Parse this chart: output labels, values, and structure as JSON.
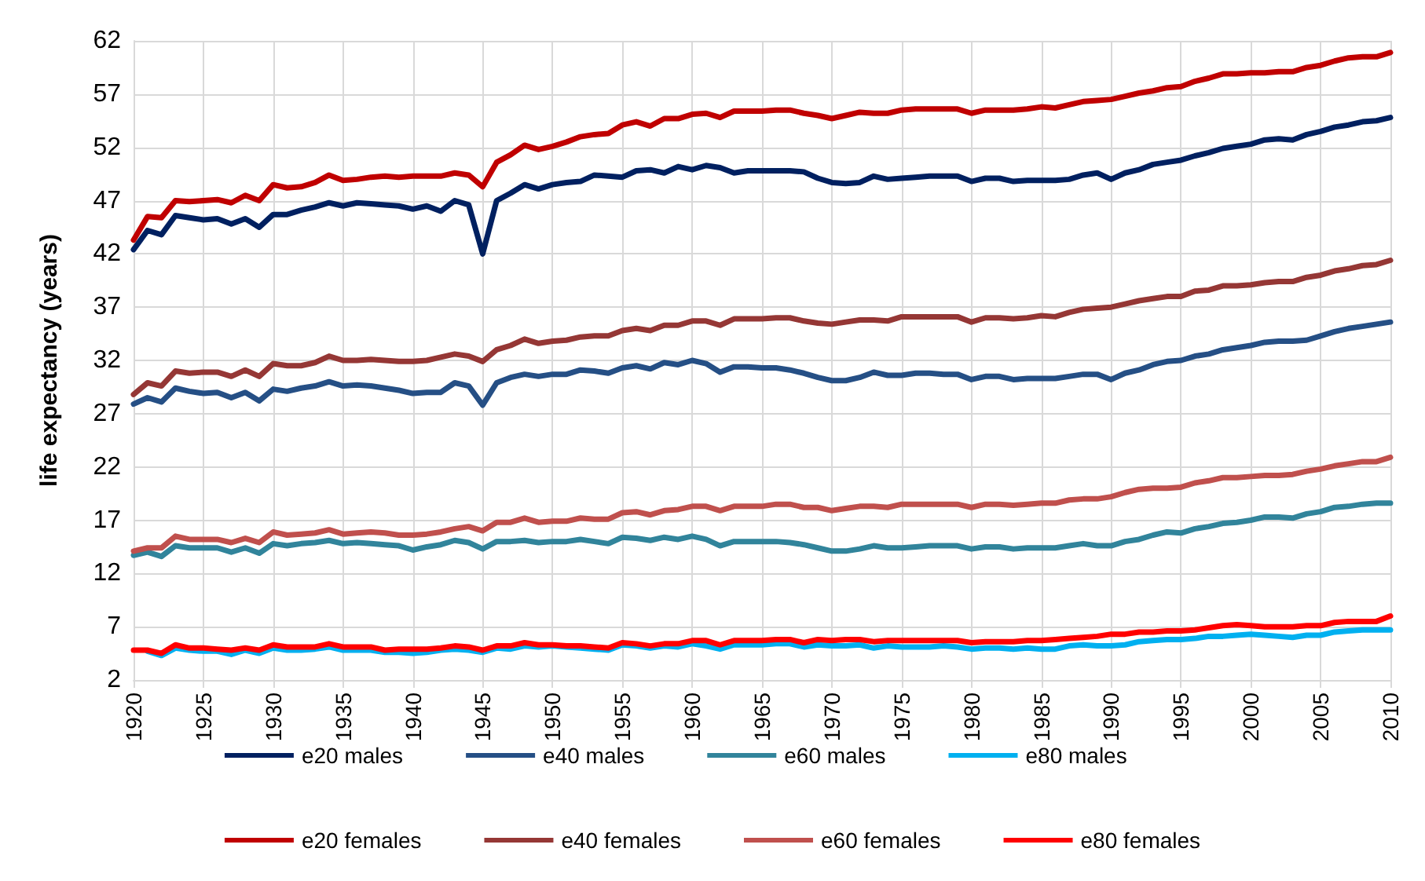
{
  "chart_data": {
    "type": "line",
    "ylabel": "life expectancy (years)",
    "x": [
      1920,
      1921,
      1922,
      1923,
      1924,
      1925,
      1926,
      1927,
      1928,
      1929,
      1930,
      1931,
      1932,
      1933,
      1934,
      1935,
      1936,
      1937,
      1938,
      1939,
      1940,
      1941,
      1942,
      1943,
      1944,
      1945,
      1946,
      1947,
      1948,
      1949,
      1950,
      1951,
      1952,
      1953,
      1954,
      1955,
      1956,
      1957,
      1958,
      1959,
      1960,
      1961,
      1962,
      1963,
      1964,
      1965,
      1966,
      1967,
      1968,
      1969,
      1970,
      1971,
      1972,
      1973,
      1974,
      1975,
      1976,
      1977,
      1978,
      1979,
      1980,
      1981,
      1982,
      1983,
      1984,
      1985,
      1986,
      1987,
      1988,
      1989,
      1990,
      1991,
      1992,
      1993,
      1994,
      1995,
      1996,
      1997,
      1998,
      1999,
      2000,
      2001,
      2002,
      2003,
      2004,
      2005,
      2006,
      2007,
      2008,
      2009,
      2010
    ],
    "xlim": [
      1920,
      2010
    ],
    "xticks": [
      1920,
      1925,
      1930,
      1935,
      1940,
      1945,
      1950,
      1955,
      1960,
      1965,
      1970,
      1975,
      1980,
      1985,
      1990,
      1995,
      2000,
      2005,
      2010
    ],
    "ylim": [
      2,
      62
    ],
    "yticks": [
      2,
      7,
      12,
      17,
      22,
      27,
      32,
      37,
      42,
      47,
      52,
      57,
      62
    ],
    "grid": true,
    "legend": "bottom",
    "marker": "none",
    "line_style": "solid",
    "series": [
      {
        "name": "e20 males",
        "color": "#002060",
        "values": [
          42.4,
          44.2,
          43.8,
          45.6,
          45.4,
          45.2,
          45.3,
          44.8,
          45.3,
          44.5,
          45.7,
          45.7,
          46.1,
          46.4,
          46.8,
          46.5,
          46.8,
          46.7,
          46.6,
          46.5,
          46.2,
          46.5,
          46.0,
          47.0,
          46.6,
          42.0,
          47.0,
          47.7,
          48.5,
          48.1,
          48.5,
          48.7,
          48.8,
          49.4,
          49.3,
          49.2,
          49.8,
          49.9,
          49.6,
          50.2,
          49.9,
          50.3,
          50.1,
          49.6,
          49.8,
          49.8,
          49.8,
          49.8,
          49.7,
          49.1,
          48.7,
          48.6,
          48.7,
          49.3,
          49.0,
          49.1,
          49.2,
          49.3,
          49.3,
          49.3,
          48.8,
          49.1,
          49.1,
          48.8,
          48.9,
          48.9,
          48.9,
          49.0,
          49.4,
          49.6,
          49.0,
          49.6,
          49.9,
          50.4,
          50.6,
          50.8,
          51.2,
          51.5,
          51.9,
          52.1,
          52.3,
          52.7,
          52.8,
          52.7,
          53.2,
          53.5,
          53.9,
          54.1,
          54.4,
          54.5,
          54.8
        ]
      },
      {
        "name": "e40 males",
        "color": "#254f85",
        "values": [
          27.9,
          28.5,
          28.1,
          29.4,
          29.1,
          28.9,
          29.0,
          28.5,
          29.0,
          28.2,
          29.3,
          29.1,
          29.4,
          29.6,
          30.0,
          29.6,
          29.7,
          29.6,
          29.4,
          29.2,
          28.9,
          29.0,
          29.0,
          29.9,
          29.6,
          27.8,
          29.9,
          30.4,
          30.7,
          30.5,
          30.7,
          30.7,
          31.1,
          31.0,
          30.8,
          31.3,
          31.5,
          31.2,
          31.8,
          31.6,
          32.0,
          31.7,
          30.9,
          31.4,
          31.4,
          31.3,
          31.3,
          31.1,
          30.8,
          30.4,
          30.1,
          30.1,
          30.4,
          30.9,
          30.6,
          30.6,
          30.8,
          30.8,
          30.7,
          30.7,
          30.2,
          30.5,
          30.5,
          30.2,
          30.3,
          30.3,
          30.3,
          30.5,
          30.7,
          30.7,
          30.2,
          30.8,
          31.1,
          31.6,
          31.9,
          32.0,
          32.4,
          32.6,
          33.0,
          33.2,
          33.4,
          33.7,
          33.8,
          33.8,
          33.9,
          34.3,
          34.7,
          35.0,
          35.2,
          35.4,
          35.6
        ]
      },
      {
        "name": "e60 males",
        "color": "#31849b",
        "values": [
          13.7,
          14.0,
          13.6,
          14.6,
          14.4,
          14.4,
          14.4,
          14.0,
          14.4,
          13.9,
          14.8,
          14.6,
          14.8,
          14.9,
          15.1,
          14.8,
          14.9,
          14.8,
          14.7,
          14.6,
          14.2,
          14.5,
          14.7,
          15.1,
          14.9,
          14.3,
          15.0,
          15.0,
          15.1,
          14.9,
          15.0,
          15.0,
          15.2,
          15.0,
          14.8,
          15.4,
          15.3,
          15.1,
          15.4,
          15.2,
          15.5,
          15.2,
          14.6,
          15.0,
          15.0,
          15.0,
          15.0,
          14.9,
          14.7,
          14.4,
          14.1,
          14.1,
          14.3,
          14.6,
          14.4,
          14.4,
          14.5,
          14.6,
          14.6,
          14.6,
          14.3,
          14.5,
          14.5,
          14.3,
          14.4,
          14.4,
          14.4,
          14.6,
          14.8,
          14.6,
          14.6,
          15.0,
          15.2,
          15.6,
          15.9,
          15.8,
          16.2,
          16.4,
          16.7,
          16.8,
          17.0,
          17.3,
          17.3,
          17.2,
          17.6,
          17.8,
          18.2,
          18.3,
          18.5,
          18.6,
          18.6
        ]
      },
      {
        "name": "e80 males",
        "color": "#00b0f0",
        "values": [
          null,
          4.7,
          4.3,
          5.0,
          4.8,
          4.7,
          4.7,
          4.4,
          4.8,
          4.5,
          5.0,
          4.8,
          4.8,
          4.9,
          5.1,
          4.8,
          4.8,
          4.8,
          4.6,
          4.6,
          4.5,
          4.6,
          4.8,
          4.9,
          4.8,
          4.6,
          5.0,
          4.9,
          5.2,
          5.1,
          5.2,
          5.1,
          5.0,
          4.9,
          4.8,
          5.3,
          5.2,
          5.0,
          5.2,
          5.1,
          5.4,
          5.2,
          4.9,
          5.3,
          5.3,
          5.3,
          5.4,
          5.4,
          5.1,
          5.3,
          5.2,
          5.2,
          5.3,
          5.0,
          5.2,
          5.1,
          5.1,
          5.1,
          5.2,
          5.1,
          4.9,
          5.0,
          5.0,
          4.9,
          5.0,
          4.9,
          4.9,
          5.2,
          5.3,
          5.2,
          5.2,
          5.3,
          5.6,
          5.7,
          5.8,
          5.8,
          5.9,
          6.1,
          6.1,
          6.2,
          6.3,
          6.2,
          6.1,
          6.0,
          6.2,
          6.2,
          6.5,
          6.6,
          6.7,
          6.7,
          6.7
        ]
      },
      {
        "name": "e20 females",
        "color": "#c00000",
        "values": [
          43.3,
          45.5,
          45.4,
          47.0,
          46.9,
          47.0,
          47.1,
          46.8,
          47.5,
          47.0,
          48.5,
          48.2,
          48.3,
          48.7,
          49.4,
          48.9,
          49.0,
          49.2,
          49.3,
          49.2,
          49.3,
          49.3,
          49.3,
          49.6,
          49.4,
          48.3,
          50.6,
          51.3,
          52.2,
          51.8,
          52.1,
          52.5,
          53.0,
          53.2,
          53.3,
          54.1,
          54.4,
          54.0,
          54.7,
          54.7,
          55.1,
          55.2,
          54.8,
          55.4,
          55.4,
          55.4,
          55.5,
          55.5,
          55.2,
          55.0,
          54.7,
          55.0,
          55.3,
          55.2,
          55.2,
          55.5,
          55.6,
          55.6,
          55.6,
          55.6,
          55.2,
          55.5,
          55.5,
          55.5,
          55.6,
          55.8,
          55.7,
          56.0,
          56.3,
          56.4,
          56.5,
          56.8,
          57.1,
          57.3,
          57.6,
          57.7,
          58.2,
          58.5,
          58.9,
          58.9,
          59.0,
          59.0,
          59.1,
          59.1,
          59.5,
          59.7,
          60.1,
          60.4,
          60.5,
          60.5,
          60.9
        ]
      },
      {
        "name": "e40 females",
        "color": "#953735",
        "values": [
          28.8,
          29.9,
          29.6,
          31.0,
          30.8,
          30.9,
          30.9,
          30.5,
          31.1,
          30.5,
          31.7,
          31.5,
          31.5,
          31.8,
          32.4,
          32.0,
          32.0,
          32.1,
          32.0,
          31.9,
          31.9,
          32.0,
          32.3,
          32.6,
          32.4,
          31.9,
          33.0,
          33.4,
          34.0,
          33.6,
          33.8,
          33.9,
          34.2,
          34.3,
          34.3,
          34.8,
          35.0,
          34.8,
          35.3,
          35.3,
          35.7,
          35.7,
          35.3,
          35.9,
          35.9,
          35.9,
          36.0,
          36.0,
          35.7,
          35.5,
          35.4,
          35.6,
          35.8,
          35.8,
          35.7,
          36.1,
          36.1,
          36.1,
          36.1,
          36.1,
          35.6,
          36.0,
          36.0,
          35.9,
          36.0,
          36.2,
          36.1,
          36.5,
          36.8,
          36.9,
          37.0,
          37.3,
          37.6,
          37.8,
          38.0,
          38.0,
          38.5,
          38.6,
          39.0,
          39.0,
          39.1,
          39.3,
          39.4,
          39.4,
          39.8,
          40.0,
          40.4,
          40.6,
          40.9,
          41.0,
          41.4
        ]
      },
      {
        "name": "e60 females",
        "color": "#c0504d",
        "values": [
          14.1,
          14.4,
          14.4,
          15.5,
          15.2,
          15.2,
          15.2,
          14.9,
          15.3,
          14.9,
          15.9,
          15.6,
          15.7,
          15.8,
          16.1,
          15.7,
          15.8,
          15.9,
          15.8,
          15.6,
          15.6,
          15.7,
          15.9,
          16.2,
          16.4,
          16.0,
          16.8,
          16.8,
          17.2,
          16.8,
          16.9,
          16.9,
          17.2,
          17.1,
          17.1,
          17.7,
          17.8,
          17.5,
          17.9,
          18.0,
          18.3,
          18.3,
          17.9,
          18.3,
          18.3,
          18.3,
          18.5,
          18.5,
          18.2,
          18.2,
          17.9,
          18.1,
          18.3,
          18.3,
          18.2,
          18.5,
          18.5,
          18.5,
          18.5,
          18.5,
          18.2,
          18.5,
          18.5,
          18.4,
          18.5,
          18.6,
          18.6,
          18.9,
          19.0,
          19.0,
          19.2,
          19.6,
          19.9,
          20.0,
          20.0,
          20.1,
          20.5,
          20.7,
          21.0,
          21.0,
          21.1,
          21.2,
          21.2,
          21.3,
          21.6,
          21.8,
          22.1,
          22.3,
          22.5,
          22.5,
          22.9
        ]
      },
      {
        "name": "e80 females",
        "color": "#ff0000",
        "values": [
          4.8,
          4.8,
          4.5,
          5.3,
          5.0,
          5.0,
          4.9,
          4.8,
          5.0,
          4.8,
          5.3,
          5.1,
          5.1,
          5.1,
          5.4,
          5.1,
          5.1,
          5.1,
          4.8,
          4.9,
          4.9,
          4.9,
          5.0,
          5.2,
          5.1,
          4.8,
          5.2,
          5.2,
          5.5,
          5.3,
          5.3,
          5.2,
          5.2,
          5.1,
          5.0,
          5.5,
          5.4,
          5.2,
          5.4,
          5.4,
          5.7,
          5.7,
          5.3,
          5.7,
          5.7,
          5.7,
          5.8,
          5.8,
          5.5,
          5.8,
          5.7,
          5.8,
          5.8,
          5.6,
          5.7,
          5.7,
          5.7,
          5.7,
          5.7,
          5.7,
          5.5,
          5.6,
          5.6,
          5.6,
          5.7,
          5.7,
          5.8,
          5.9,
          6.0,
          6.1,
          6.3,
          6.3,
          6.5,
          6.5,
          6.6,
          6.6,
          6.7,
          6.9,
          7.1,
          7.2,
          7.1,
          7.0,
          7.0,
          7.0,
          7.1,
          7.1,
          7.4,
          7.5,
          7.5,
          7.5,
          8.0
        ]
      }
    ]
  }
}
